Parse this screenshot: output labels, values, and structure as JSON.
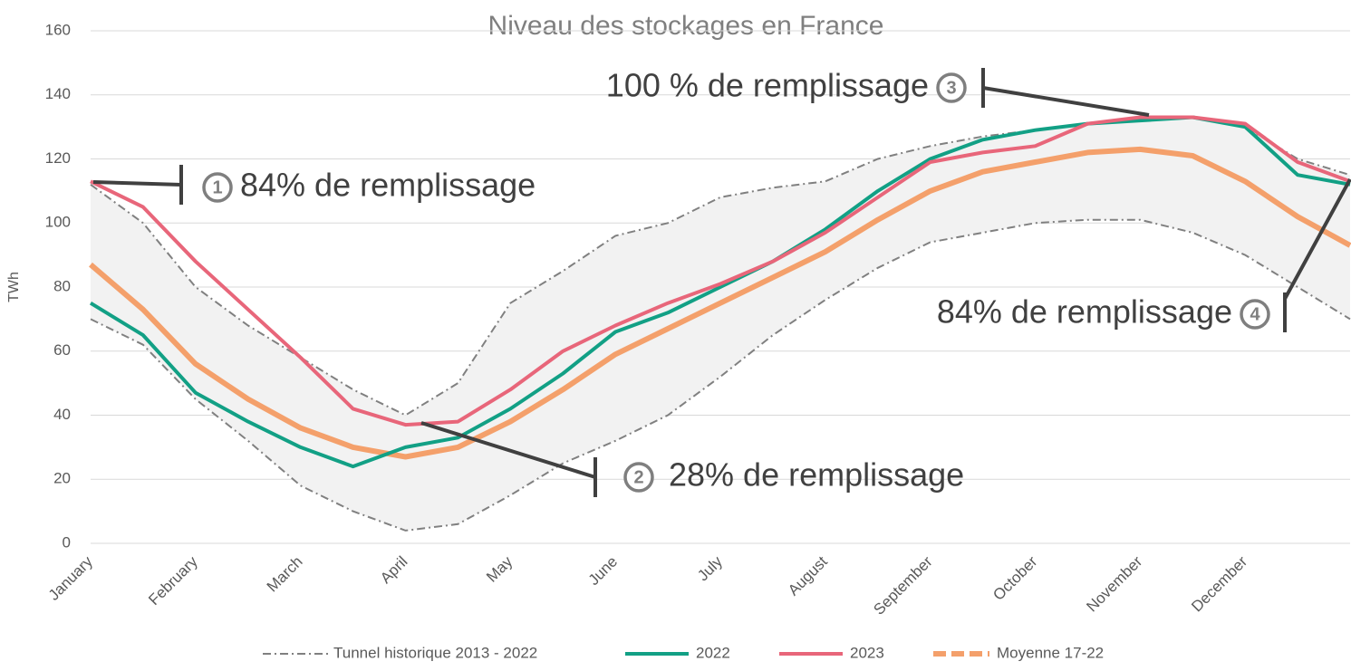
{
  "chart_data": {
    "type": "line",
    "title": "Niveau des stockages en France",
    "y_label": "TWh",
    "categories": [
      "January",
      null,
      "February",
      null,
      "March",
      null,
      "April",
      null,
      "May",
      null,
      "June",
      null,
      "July",
      null,
      "August",
      null,
      "September",
      null,
      "October",
      null,
      "November",
      null,
      "December",
      null,
      null
    ],
    "ylim": [
      0,
      160
    ],
    "yticks": [
      0,
      20,
      40,
      60,
      80,
      100,
      120,
      140,
      160
    ],
    "grid": true,
    "band": {
      "name": "Tunnel historique 2013 - 2022",
      "color": "#808080",
      "fill": "#f2f2f2",
      "upper": [
        112,
        100,
        80,
        68,
        58,
        48,
        40,
        50,
        75,
        85,
        96,
        100,
        108,
        111,
        113,
        120,
        124,
        127,
        129,
        131,
        133,
        133,
        130,
        120,
        115
      ],
      "lower": [
        70,
        62,
        45,
        32,
        18,
        10,
        4,
        6,
        15,
        25,
        32,
        40,
        52,
        65,
        76,
        86,
        94,
        97,
        100,
        101,
        101,
        97,
        90,
        80,
        70
      ]
    },
    "series": [
      {
        "name": "2022",
        "color": "#12a085",
        "dash": false,
        "values": [
          75,
          65,
          47,
          38,
          30,
          24,
          30,
          33,
          42,
          53,
          66,
          72,
          80,
          88,
          98,
          110,
          120,
          126,
          129,
          131,
          132,
          133,
          130,
          115,
          112
        ]
      },
      {
        "name": "2023",
        "color": "#e8667a",
        "dash": false,
        "values": [
          113,
          105,
          88,
          73,
          58,
          42,
          37,
          38,
          48,
          60,
          68,
          75,
          81,
          88,
          97,
          108,
          119,
          122,
          124,
          131,
          133,
          133,
          131,
          119,
          113
        ]
      },
      {
        "name": "Moyenne 17-22",
        "color": "#f4a06b",
        "dash": true,
        "values": [
          87,
          73,
          56,
          45,
          36,
          30,
          27,
          30,
          38,
          48,
          59,
          67,
          75,
          83,
          91,
          101,
          110,
          116,
          119,
          122,
          123,
          121,
          113,
          102,
          93
        ]
      }
    ],
    "annotations": [
      {
        "number": "1",
        "text": "84% de remplissage"
      },
      {
        "number": "2",
        "text": "28% de remplissage"
      },
      {
        "number": "3",
        "text": "100 % de remplissage"
      },
      {
        "number": "4",
        "text": "84% de remplissage"
      }
    ]
  }
}
